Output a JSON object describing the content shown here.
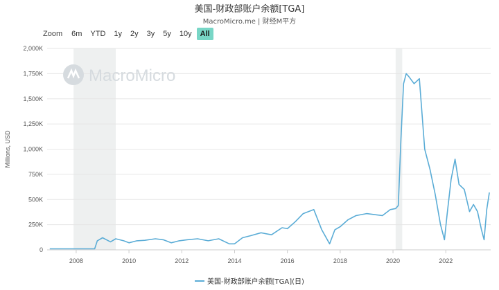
{
  "title": "美国-财政部账户余额[TGA]",
  "subtitle": "MacroMicro.me | 财经M平方",
  "watermark": "MacroMicro",
  "zoom": {
    "label": "Zoom",
    "buttons": [
      "6m",
      "YTD",
      "1y",
      "2y",
      "3y",
      "5y",
      "10y",
      "All"
    ],
    "active": "All"
  },
  "colors": {
    "series": "#5aacd6",
    "active_button": "#78d6c6",
    "shade": "#eef0f0",
    "grid": "#e6e6e6"
  },
  "chart_data": {
    "type": "line",
    "title": "美国-财政部账户余额[TGA]",
    "ylabel": "Millions, USD",
    "xlabel": "",
    "ylim": [
      0,
      2000
    ],
    "xlim": [
      2006.9,
      2023.7
    ],
    "yticks": [
      0,
      250,
      500,
      750,
      1000,
      1250,
      1500,
      1750,
      2000
    ],
    "ytick_labels": [
      "0",
      "250K",
      "500K",
      "750K",
      "1,000K",
      "1,250K",
      "1,500K",
      "1,750K",
      "2,000K"
    ],
    "xticks": [
      2008,
      2010,
      2012,
      2014,
      2016,
      2018,
      2020,
      2022
    ],
    "xtick_labels": [
      "2008",
      "2010",
      "2012",
      "2014",
      "2016",
      "2018",
      "2020",
      "2022"
    ],
    "grid": true,
    "legend_position": "bottom-center",
    "shaded_periods": [
      [
        2007.9,
        2009.5
      ],
      [
        2020.1,
        2020.35
      ]
    ],
    "series": [
      {
        "name": "美国-财政部账户余额[TGA](日)",
        "x": [
          2007.0,
          2007.5,
          2008.0,
          2008.5,
          2008.7,
          2008.8,
          2009.0,
          2009.3,
          2009.5,
          2009.8,
          2010.0,
          2010.3,
          2010.6,
          2011.0,
          2011.3,
          2011.6,
          2011.9,
          2012.2,
          2012.6,
          2013.0,
          2013.4,
          2013.8,
          2014.0,
          2014.3,
          2014.6,
          2015.0,
          2015.4,
          2015.8,
          2016.0,
          2016.3,
          2016.6,
          2017.0,
          2017.3,
          2017.6,
          2017.8,
          2018.0,
          2018.3,
          2018.6,
          2019.0,
          2019.3,
          2019.6,
          2019.9,
          2020.1,
          2020.2,
          2020.3,
          2020.4,
          2020.5,
          2020.6,
          2020.8,
          2021.0,
          2021.2,
          2021.4,
          2021.6,
          2021.8,
          2021.95,
          2022.05,
          2022.2,
          2022.35,
          2022.5,
          2022.7,
          2022.9,
          2023.05,
          2023.2,
          2023.35,
          2023.45,
          2023.55,
          2023.65
        ],
        "y": [
          10,
          10,
          10,
          10,
          10,
          90,
          120,
          80,
          110,
          90,
          70,
          90,
          95,
          110,
          100,
          70,
          90,
          100,
          110,
          90,
          110,
          60,
          60,
          120,
          140,
          170,
          150,
          220,
          210,
          280,
          360,
          400,
          200,
          60,
          200,
          230,
          300,
          340,
          360,
          350,
          340,
          400,
          410,
          440,
          1100,
          1650,
          1750,
          1720,
          1650,
          1700,
          1000,
          800,
          550,
          250,
          100,
          350,
          700,
          900,
          650,
          600,
          380,
          450,
          380,
          200,
          100,
          400,
          570
        ]
      }
    ]
  }
}
